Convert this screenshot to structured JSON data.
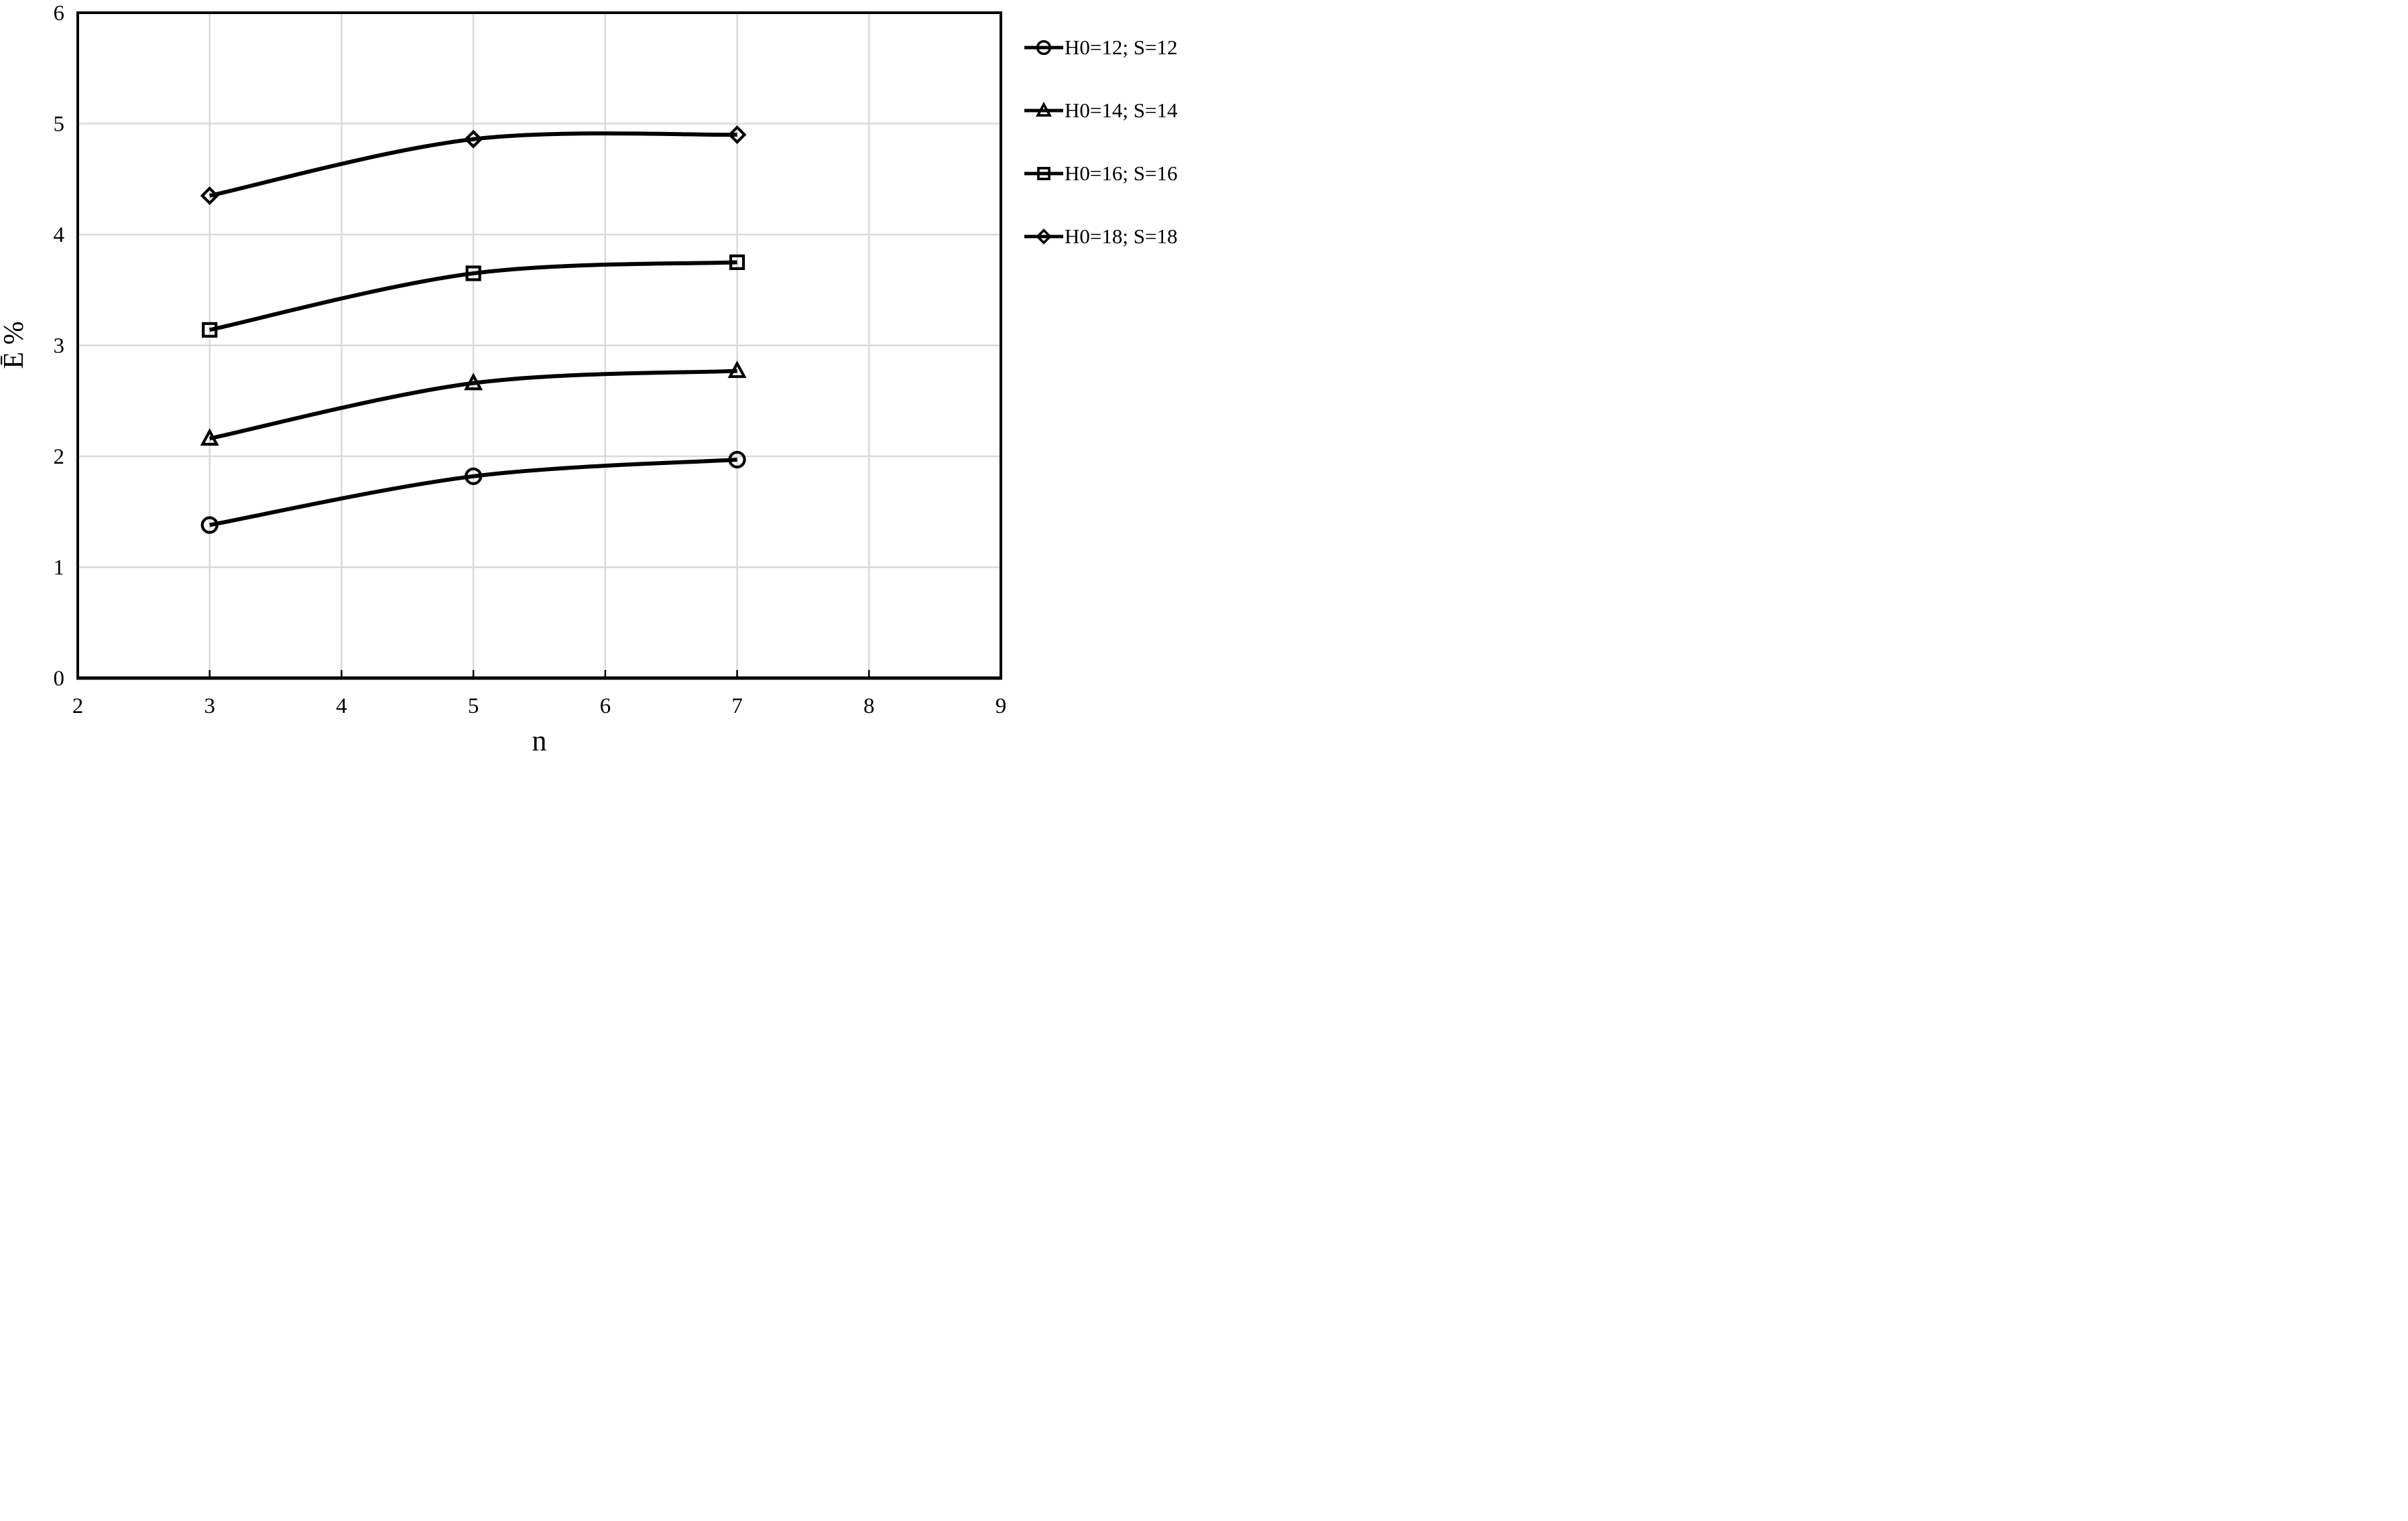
{
  "chart_data": {
    "type": "line",
    "title": "",
    "xlabel": "n",
    "ylabel": "Ē %",
    "xlim": [
      2,
      9
    ],
    "ylim": [
      0,
      6
    ],
    "x_ticks": [
      2,
      3,
      4,
      5,
      6,
      7,
      8,
      9
    ],
    "y_ticks": [
      0,
      1,
      2,
      3,
      4,
      5,
      6
    ],
    "grid": true,
    "smooth": true,
    "legend_position": "right-outside",
    "x": [
      3,
      5,
      7
    ],
    "series": [
      {
        "name": "H0=12; S=12",
        "marker": "circle",
        "values": [
          1.38,
          1.82,
          1.97
        ]
      },
      {
        "name": "H0=14; S=14",
        "marker": "triangle",
        "values": [
          2.16,
          2.66,
          2.77
        ]
      },
      {
        "name": "H0=16; S=16",
        "marker": "square",
        "values": [
          3.14,
          3.65,
          3.75
        ]
      },
      {
        "name": "H0=18; S=18",
        "marker": "diamond",
        "values": [
          4.35,
          4.86,
          4.9
        ]
      }
    ],
    "colors": {
      "line": "#000000",
      "grid": "#d9d9d9",
      "axis": "#000000",
      "background": "#ffffff",
      "text": "#000000"
    }
  }
}
